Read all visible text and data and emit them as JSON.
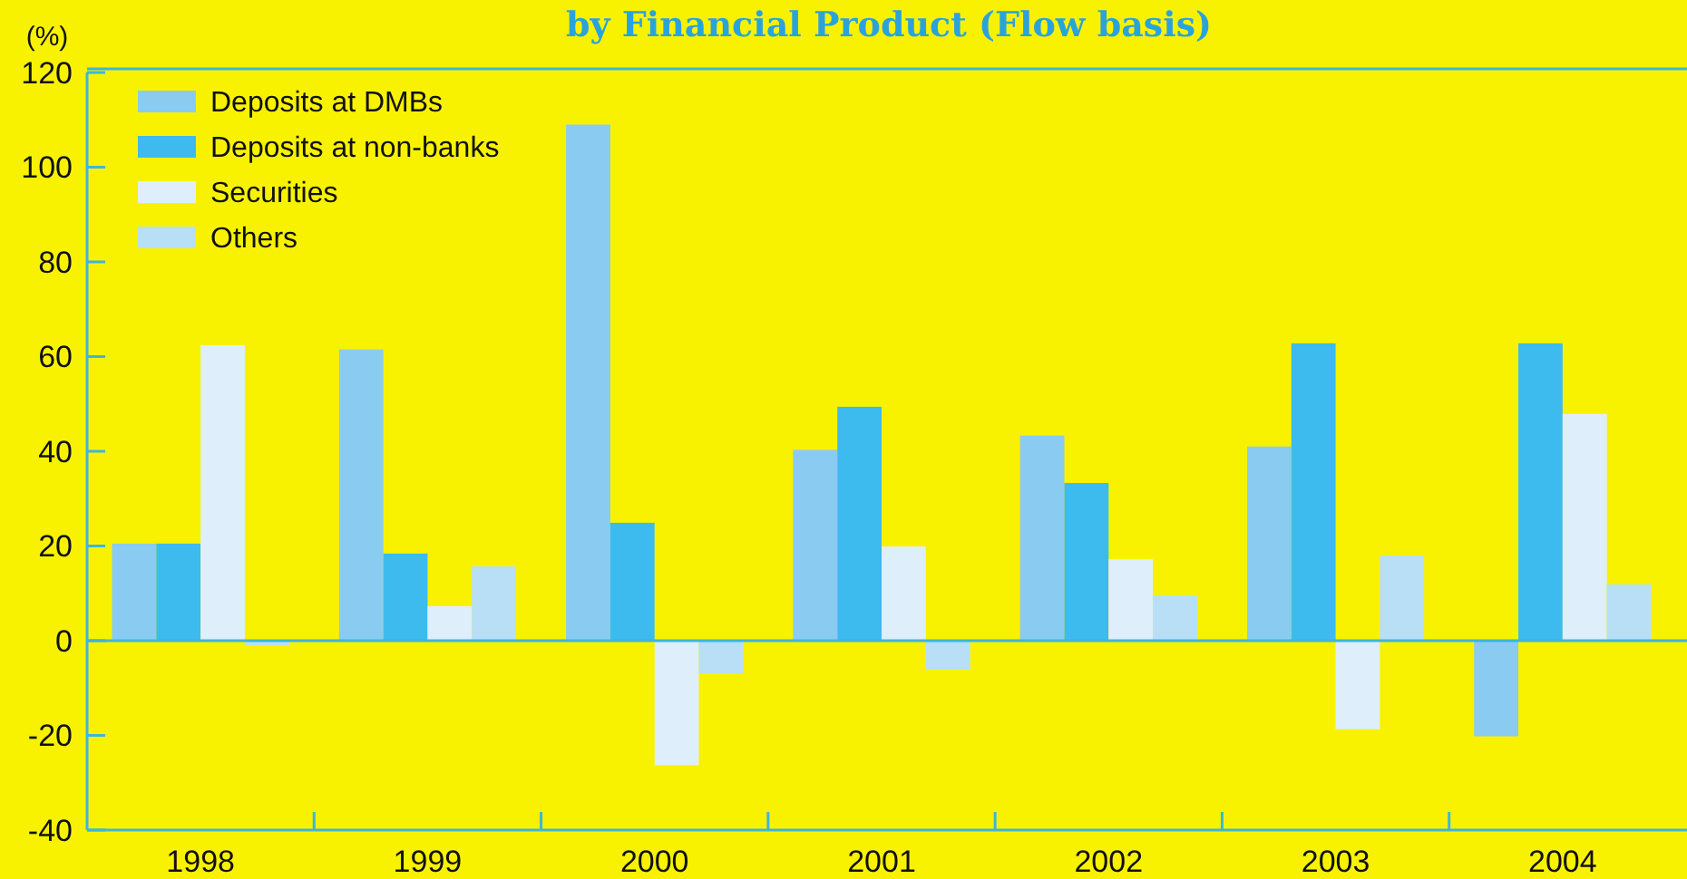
{
  "chart_data": {
    "type": "bar",
    "title": "by Financial Product (Flow basis)",
    "ylabel": "(%)",
    "categories": [
      "1998",
      "1999",
      "2000",
      "2001",
      "2002",
      "2003",
      "2004"
    ],
    "series": [
      {
        "name": "Deposits at DMBs",
        "color": "#8acbf2",
        "values": [
          20.5,
          61.5,
          109,
          40.3,
          43.3,
          41,
          -20.2
        ]
      },
      {
        "name": "Deposits at non-banks",
        "color": "#3dbbee",
        "values": [
          20.5,
          18.4,
          24.9,
          49.4,
          33.3,
          62.8,
          62.8
        ]
      },
      {
        "name": "Securities",
        "color": "#deeefa",
        "values": [
          62.4,
          7.3,
          -26.3,
          19.9,
          17.2,
          -18.7,
          47.9
        ]
      },
      {
        "name": "Others",
        "color": "#b8dff5",
        "values": [
          -1,
          15.7,
          -6.9,
          -6.1,
          9.6,
          18,
          11.9
        ]
      }
    ],
    "ylim": [
      -40,
      120
    ],
    "yticks": [
      -40,
      -20,
      0,
      20,
      40,
      60,
      80,
      100,
      120
    ],
    "grid": false,
    "ref_lines": [
      {
        "axis": "y",
        "value": 0,
        "color": "#3fb6d8"
      }
    ],
    "legend": "top left"
  }
}
